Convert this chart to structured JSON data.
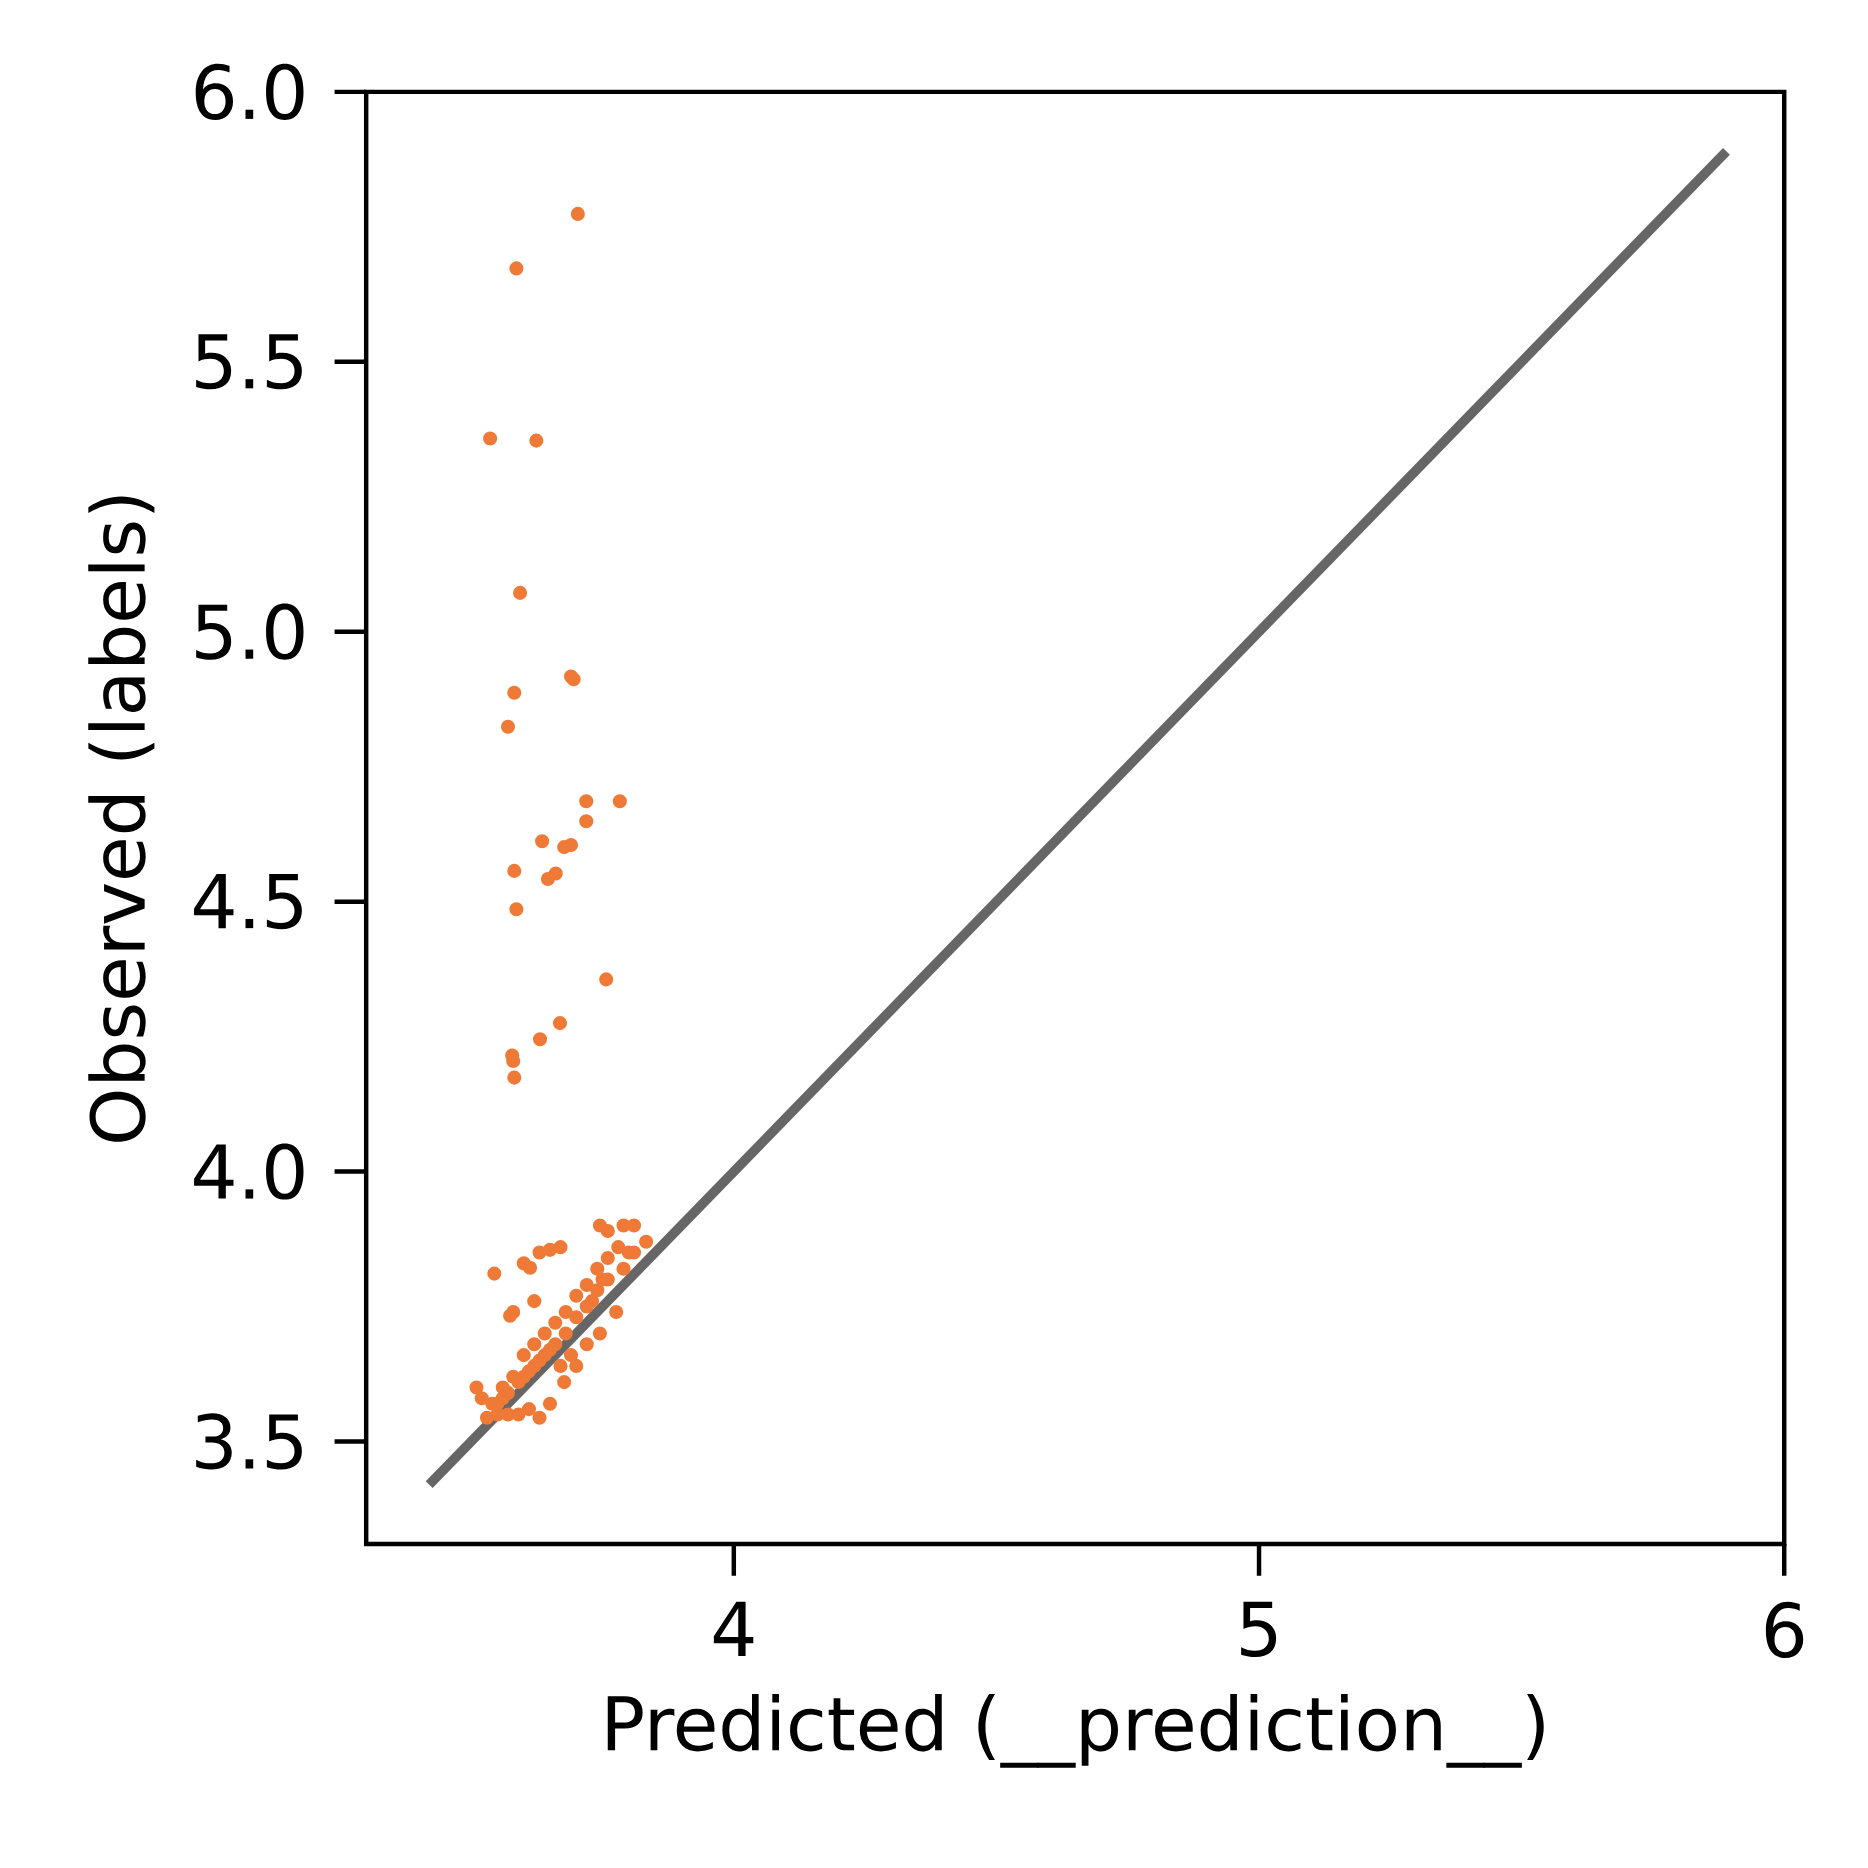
{
  "chart_data": {
    "type": "scatter",
    "xlabel": "Predicted (__prediction__)",
    "ylabel": "Observed (labels)",
    "xlim": [
      3.3,
      6.0
    ],
    "ylim": [
      3.31,
      6.0
    ],
    "xticks": [
      4,
      5,
      6
    ],
    "yticks": [
      3.5,
      {
        "value": 4.0,
        "label": "4.0"
      },
      4.5,
      {
        "value": 5.0,
        "label": "5.0"
      },
      5.5,
      {
        "value": 6.0,
        "label": "6.0"
      }
    ],
    "grid": false,
    "series": [
      {
        "type": "line",
        "color": "#666666",
        "marker": "none",
        "line_style": "solid",
        "x": [
          3.42,
          5.89
        ],
        "values": [
          3.42,
          5.89
        ]
      },
      {
        "color": "#ef7936",
        "marker": "circle",
        "x": [
          3.703,
          3.586,
          3.536,
          3.624,
          3.593,
          3.69,
          3.695,
          3.582,
          3.57,
          3.719,
          3.783,
          3.719,
          3.635,
          3.677,
          3.69,
          3.582,
          3.646,
          3.661,
          3.586,
          3.757,
          3.669,
          3.631,
          3.578,
          3.58,
          3.582,
          3.544,
          3.58,
          3.6,
          3.63,
          3.65,
          3.67,
          3.745,
          3.76,
          3.79,
          3.81,
          3.833,
          3.8,
          3.776,
          3.745,
          3.72,
          3.7,
          3.51,
          3.53,
          3.55,
          3.57,
          3.59,
          3.61,
          3.63,
          3.65,
          3.677,
          3.56,
          3.574,
          3.62,
          3.612,
          3.64,
          3.66,
          3.68,
          3.7,
          3.72,
          3.74,
          3.76,
          3.78,
          3.6,
          3.62,
          3.64,
          3.66,
          3.68,
          3.7,
          3.72,
          3.74,
          3.76,
          3.55,
          3.57,
          3.59,
          3.61,
          3.63,
          3.65,
          3.52,
          3.54,
          3.56,
          3.58,
          3.6,
          3.62,
          3.79,
          3.81,
          3.73,
          3.75,
          3.69,
          3.67
        ],
        "values": [
          5.774,
          5.673,
          5.358,
          5.354,
          5.072,
          4.917,
          4.912,
          4.887,
          4.824,
          4.686,
          4.686,
          4.649,
          4.612,
          4.601,
          4.605,
          4.557,
          4.542,
          4.552,
          4.486,
          4.356,
          4.275,
          4.245,
          4.215,
          4.205,
          4.174,
          3.811,
          3.74,
          3.83,
          3.85,
          3.855,
          3.86,
          3.9,
          3.89,
          3.9,
          3.9,
          3.87,
          3.85,
          3.74,
          3.7,
          3.68,
          3.64,
          3.6,
          3.544,
          3.55,
          3.55,
          3.55,
          3.56,
          3.544,
          3.57,
          3.61,
          3.58,
          3.733,
          3.76,
          3.822,
          3.7,
          3.72,
          3.74,
          3.77,
          3.79,
          3.82,
          3.84,
          3.86,
          3.62,
          3.64,
          3.66,
          3.68,
          3.7,
          3.73,
          3.75,
          3.78,
          3.8,
          3.57,
          3.59,
          3.61,
          3.63,
          3.65,
          3.67,
          3.58,
          3.57,
          3.6,
          3.62,
          3.66,
          3.68,
          3.82,
          3.85,
          3.76,
          3.8,
          3.66,
          3.64
        ]
      }
    ]
  }
}
